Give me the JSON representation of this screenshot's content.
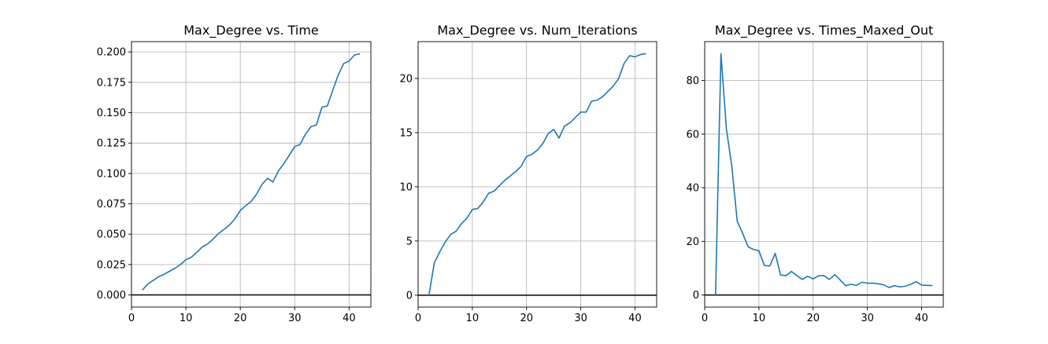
{
  "chart_data": [
    {
      "type": "line",
      "title": "Max_Degree vs. Time",
      "xlabel": "",
      "ylabel": "",
      "xlim": [
        0,
        44
      ],
      "ylim": [
        -0.01,
        0.2085
      ],
      "xticks": [
        0,
        10,
        20,
        30,
        40
      ],
      "xtick_labels": [
        "0",
        "10",
        "20",
        "30",
        "40"
      ],
      "yticks": [
        0.0,
        0.025,
        0.05,
        0.075,
        0.1,
        0.125,
        0.15,
        0.175,
        0.2
      ],
      "ytick_labels": [
        "0.000",
        "0.025",
        "0.050",
        "0.075",
        "0.100",
        "0.125",
        "0.150",
        "0.175",
        "0.200"
      ],
      "grid": true,
      "zero_line": true,
      "series_color": "#1f77b4",
      "x": [
        2,
        3,
        4,
        5,
        6,
        7,
        8,
        9,
        10,
        11,
        12,
        13,
        14,
        15,
        16,
        17,
        18,
        19,
        20,
        21,
        22,
        23,
        24,
        25,
        26,
        27,
        28,
        29,
        30,
        31,
        32,
        33,
        34,
        35,
        36,
        37,
        38,
        39,
        40,
        41,
        42
      ],
      "y": [
        0.004,
        0.009,
        0.012,
        0.015,
        0.017,
        0.0195,
        0.022,
        0.025,
        0.029,
        0.031,
        0.035,
        0.0395,
        0.042,
        0.046,
        0.0505,
        0.054,
        0.0575,
        0.0625,
        0.0695,
        0.0735,
        0.077,
        0.083,
        0.091,
        0.096,
        0.093,
        0.102,
        0.108,
        0.115,
        0.122,
        0.124,
        0.1325,
        0.1385,
        0.14,
        0.1545,
        0.1555,
        0.1685,
        0.181,
        0.1905,
        0.1925,
        0.1975,
        0.1985
      ]
    },
    {
      "type": "line",
      "title": "Max_Degree vs. Num_Iterations",
      "xlabel": "",
      "ylabel": "",
      "xlim": [
        0,
        44
      ],
      "ylim": [
        -1.1,
        23.4
      ],
      "xticks": [
        0,
        10,
        20,
        30,
        40
      ],
      "xtick_labels": [
        "0",
        "10",
        "20",
        "30",
        "40"
      ],
      "yticks": [
        0,
        5,
        10,
        15,
        20
      ],
      "ytick_labels": [
        "0",
        "5",
        "10",
        "15",
        "20"
      ],
      "grid": true,
      "zero_line": true,
      "series_color": "#1f77b4",
      "x": [
        2,
        3,
        4,
        5,
        6,
        7,
        8,
        9,
        10,
        11,
        12,
        13,
        14,
        15,
        16,
        17,
        18,
        19,
        20,
        21,
        22,
        23,
        24,
        25,
        26,
        27,
        28,
        29,
        30,
        31,
        32,
        33,
        34,
        35,
        36,
        37,
        38,
        39,
        40,
        41,
        42
      ],
      "y": [
        0,
        3.0,
        4.0,
        4.9,
        5.6,
        5.9,
        6.6,
        7.1,
        7.9,
        8.0,
        8.6,
        9.4,
        9.6,
        10.1,
        10.6,
        11.0,
        11.4,
        11.9,
        12.8,
        13.0,
        13.4,
        14.0,
        14.9,
        15.3,
        14.5,
        15.6,
        15.9,
        16.4,
        16.9,
        16.9,
        17.9,
        18.0,
        18.3,
        18.8,
        19.3,
        20.0,
        21.4,
        22.1,
        22.0,
        22.2,
        22.3
      ]
    },
    {
      "type": "line",
      "title": "Max_Degree vs. Times_Maxed_Out",
      "xlabel": "",
      "ylabel": "",
      "xlim": [
        0,
        44
      ],
      "ylim": [
        -4.5,
        94.5
      ],
      "xticks": [
        0,
        10,
        20,
        30,
        40
      ],
      "xtick_labels": [
        "0",
        "10",
        "20",
        "30",
        "40"
      ],
      "yticks": [
        0,
        20,
        40,
        60,
        80
      ],
      "ytick_labels": [
        "0",
        "20",
        "40",
        "60",
        "80"
      ],
      "grid": true,
      "zero_line": true,
      "series_color": "#1f77b4",
      "x": [
        2,
        3,
        4,
        5,
        6,
        7,
        8,
        9,
        10,
        11,
        12,
        13,
        14,
        15,
        16,
        17,
        18,
        19,
        20,
        21,
        22,
        23,
        24,
        25,
        26,
        27,
        28,
        29,
        30,
        31,
        32,
        33,
        34,
        35,
        36,
        37,
        38,
        39,
        40,
        41,
        42
      ],
      "y": [
        0,
        90,
        62,
        48,
        27.5,
        23,
        18,
        17,
        16.5,
        11,
        10.8,
        15.5,
        7.5,
        7.2,
        8.8,
        7.2,
        5.8,
        7.0,
        6.0,
        7.2,
        7.2,
        5.8,
        7.6,
        5.6,
        3.5,
        4.0,
        3.6,
        4.8,
        4.4,
        4.4,
        4.2,
        3.8,
        2.8,
        3.5,
        3.0,
        3.3,
        4.0,
        5.0,
        3.7,
        3.6,
        3.5
      ]
    }
  ]
}
